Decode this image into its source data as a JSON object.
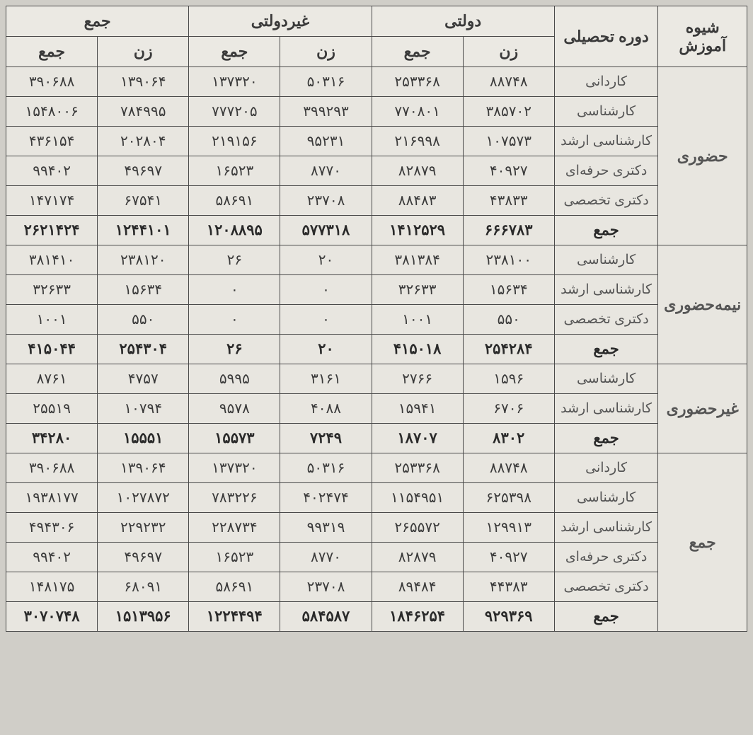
{
  "header": {
    "mode": "شیوه آموزش",
    "level": "دوره تحصیلی",
    "governmental": "دولتی",
    "nongovernmental": "غیردولتی",
    "total": "جمع",
    "women": "زن",
    "sum": "جمع"
  },
  "modes": {
    "inperson": "حضوری",
    "semi": "نیمه‌حضوری",
    "non": "غیرحضوری",
    "total": "جمع"
  },
  "levels": {
    "kardani": "کاردانی",
    "karshenasi": "کارشناسی",
    "arshad": "کارشناسی ارشد",
    "herfei": "دکتری حرفه‌ای",
    "takhassosi": "دکتری تخصصی",
    "sum": "جمع"
  },
  "rows": [
    {
      "gov_w": "۸۸۷۴۸",
      "gov_t": "۲۵۳۳۶۸",
      "non_w": "۵۰۳۱۶",
      "non_t": "۱۳۷۳۲۰",
      "tot_w": "۱۳۹۰۶۴",
      "tot_t": "۳۹۰۶۸۸"
    },
    {
      "gov_w": "۳۸۵۷۰۲",
      "gov_t": "۷۷۰۸۰۱",
      "non_w": "۳۹۹۲۹۳",
      "non_t": "۷۷۷۲۰۵",
      "tot_w": "۷۸۴۹۹۵",
      "tot_t": "۱۵۴۸۰۰۶"
    },
    {
      "gov_w": "۱۰۷۵۷۳",
      "gov_t": "۲۱۶۹۹۸",
      "non_w": "۹۵۲۳۱",
      "non_t": "۲۱۹۱۵۶",
      "tot_w": "۲۰۲۸۰۴",
      "tot_t": "۴۳۶۱۵۴"
    },
    {
      "gov_w": "۴۰۹۲۷",
      "gov_t": "۸۲۸۷۹",
      "non_w": "۸۷۷۰",
      "non_t": "۱۶۵۲۳",
      "tot_w": "۴۹۶۹۷",
      "tot_t": "۹۹۴۰۲"
    },
    {
      "gov_w": "۴۳۸۳۳",
      "gov_t": "۸۸۴۸۳",
      "non_w": "۲۳۷۰۸",
      "non_t": "۵۸۶۹۱",
      "tot_w": "۶۷۵۴۱",
      "tot_t": "۱۴۷۱۷۴"
    },
    {
      "gov_w": "۶۶۶۷۸۳",
      "gov_t": "۱۴۱۲۵۲۹",
      "non_w": "۵۷۷۳۱۸",
      "non_t": "۱۲۰۸۸۹۵",
      "tot_w": "۱۲۴۴۱۰۱",
      "tot_t": "۲۶۲۱۴۲۴"
    },
    {
      "gov_w": "۲۳۸۱۰۰",
      "gov_t": "۳۸۱۳۸۴",
      "non_w": "۲۰",
      "non_t": "۲۶",
      "tot_w": "۲۳۸۱۲۰",
      "tot_t": "۳۸۱۴۱۰"
    },
    {
      "gov_w": "۱۵۶۳۴",
      "gov_t": "۳۲۶۳۳",
      "non_w": "۰",
      "non_t": "۰",
      "tot_w": "۱۵۶۳۴",
      "tot_t": "۳۲۶۳۳"
    },
    {
      "gov_w": "۵۵۰",
      "gov_t": "۱۰۰۱",
      "non_w": "۰",
      "non_t": "۰",
      "tot_w": "۵۵۰",
      "tot_t": "۱۰۰۱"
    },
    {
      "gov_w": "۲۵۴۲۸۴",
      "gov_t": "۴۱۵۰۱۸",
      "non_w": "۲۰",
      "non_t": "۲۶",
      "tot_w": "۲۵۴۳۰۴",
      "tot_t": "۴۱۵۰۴۴"
    },
    {
      "gov_w": "۱۵۹۶",
      "gov_t": "۲۷۶۶",
      "non_w": "۳۱۶۱",
      "non_t": "۵۹۹۵",
      "tot_w": "۴۷۵۷",
      "tot_t": "۸۷۶۱"
    },
    {
      "gov_w": "۶۷۰۶",
      "gov_t": "۱۵۹۴۱",
      "non_w": "۴۰۸۸",
      "non_t": "۹۵۷۸",
      "tot_w": "۱۰۷۹۴",
      "tot_t": "۲۵۵۱۹"
    },
    {
      "gov_w": "۸۳۰۲",
      "gov_t": "۱۸۷۰۷",
      "non_w": "۷۲۴۹",
      "non_t": "۱۵۵۷۳",
      "tot_w": "۱۵۵۵۱",
      "tot_t": "۳۴۲۸۰"
    },
    {
      "gov_w": "۸۸۷۴۸",
      "gov_t": "۲۵۳۳۶۸",
      "non_w": "۵۰۳۱۶",
      "non_t": "۱۳۷۳۲۰",
      "tot_w": "۱۳۹۰۶۴",
      "tot_t": "۳۹۰۶۸۸"
    },
    {
      "gov_w": "۶۲۵۳۹۸",
      "gov_t": "۱۱۵۴۹۵۱",
      "non_w": "۴۰۲۴۷۴",
      "non_t": "۷۸۳۲۲۶",
      "tot_w": "۱۰۲۷۸۷۲",
      "tot_t": "۱۹۳۸۱۷۷"
    },
    {
      "gov_w": "۱۲۹۹۱۳",
      "gov_t": "۲۶۵۵۷۲",
      "non_w": "۹۹۳۱۹",
      "non_t": "۲۲۸۷۳۴",
      "tot_w": "۲۲۹۲۳۲",
      "tot_t": "۴۹۴۳۰۶"
    },
    {
      "gov_w": "۴۰۹۲۷",
      "gov_t": "۸۲۸۷۹",
      "non_w": "۸۷۷۰",
      "non_t": "۱۶۵۲۳",
      "tot_w": "۴۹۶۹۷",
      "tot_t": "۹۹۴۰۲"
    },
    {
      "gov_w": "۴۴۳۸۳",
      "gov_t": "۸۹۴۸۴",
      "non_w": "۲۳۷۰۸",
      "non_t": "۵۸۶۹۱",
      "tot_w": "۶۸۰۹۱",
      "tot_t": "۱۴۸۱۷۵"
    },
    {
      "gov_w": "۹۲۹۳۶۹",
      "gov_t": "۱۸۴۶۲۵۴",
      "non_w": "۵۸۴۵۸۷",
      "non_t": "۱۲۲۴۴۹۴",
      "tot_w": "۱۵۱۳۹۵۶",
      "tot_t": "۳۰۷۰۷۴۸"
    }
  ]
}
